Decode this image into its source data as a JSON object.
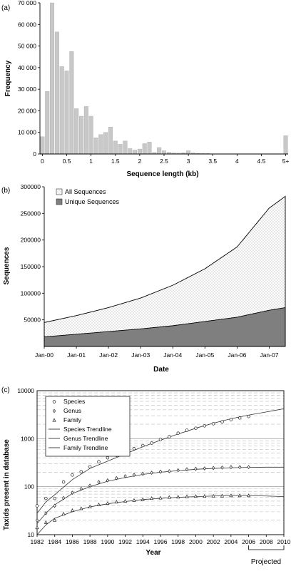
{
  "chart_data": [
    {
      "type": "bar",
      "panel_label": "(a)",
      "xlabel": "Sequence length (kb)",
      "ylabel": "Frequency",
      "ylim": [
        0,
        70000
      ],
      "yticks": [
        0,
        10000,
        20000,
        30000,
        40000,
        50000,
        60000,
        70000
      ],
      "ytick_labels": [
        "0",
        "10 000",
        "20 000",
        "30 000",
        "40 000",
        "50 000",
        "60 000",
        "70 000"
      ],
      "xtick_labels": [
        "0",
        "0.5",
        "1",
        "1.5",
        "2",
        "2.5",
        "3",
        "3.5",
        "4",
        "4.5",
        "5+"
      ],
      "bin_width_kb": 0.1,
      "bin_starts_kb": [
        0.0,
        0.1,
        0.2,
        0.3,
        0.4,
        0.5,
        0.6,
        0.7,
        0.8,
        0.9,
        1.0,
        1.1,
        1.2,
        1.3,
        1.4,
        1.5,
        1.6,
        1.7,
        1.8,
        1.9,
        2.0,
        2.1,
        2.2,
        2.3,
        2.4,
        2.5,
        2.6,
        2.7,
        2.8,
        2.9,
        3.0,
        3.1,
        3.2,
        3.3,
        3.4,
        3.5,
        3.6,
        3.7,
        3.8,
        3.9,
        4.0,
        4.1,
        4.2,
        4.3,
        4.4,
        4.5,
        4.6,
        4.7,
        4.8,
        4.9,
        "5+"
      ],
      "values": [
        8000,
        29000,
        70000,
        56500,
        40500,
        38500,
        47500,
        21000,
        17500,
        22000,
        17500,
        7500,
        9000,
        10000,
        12500,
        6000,
        4500,
        6000,
        2500,
        1800,
        2300,
        4800,
        5500,
        700,
        3000,
        1500,
        800,
        500,
        400,
        600,
        1500,
        500,
        300,
        200,
        200,
        100,
        100,
        100,
        100,
        100,
        100,
        100,
        100,
        100,
        100,
        100,
        100,
        100,
        100,
        100,
        8500
      ],
      "bar_color": "#c8c8c8"
    },
    {
      "type": "area",
      "panel_label": "(b)",
      "xlabel": "Date",
      "ylabel": "Sequences",
      "ylim": [
        0,
        300000
      ],
      "yticks": [
        50000,
        100000,
        150000,
        200000,
        250000,
        300000
      ],
      "ytick_labels": [
        "50000",
        "100000",
        "150000",
        "200000",
        "250000",
        "300000"
      ],
      "xlim": [
        "2000-01",
        "2007-07"
      ],
      "xtick_labels": [
        "Jan-00",
        "Jan-01",
        "Jan-02",
        "Jan-03",
        "Jan-04",
        "Jan-05",
        "Jan-06",
        "Jan-07"
      ],
      "x": [
        "2000-01",
        "2001-01",
        "2002-01",
        "2003-01",
        "2004-01",
        "2005-01",
        "2006-01",
        "2007-01",
        "2007-07"
      ],
      "series": [
        {
          "name": "All Sequences",
          "fill": "dotted",
          "color": "#ffffff",
          "values": [
            45000,
            58000,
            73000,
            91000,
            115000,
            146000,
            187000,
            260000,
            282000
          ]
        },
        {
          "name": "Unique Sequences",
          "fill": "solid",
          "color": "#7f7f7f",
          "values": [
            18000,
            23000,
            28000,
            33000,
            39000,
            47000,
            55000,
            68000,
            73000
          ]
        }
      ],
      "legend_position": "top-left"
    },
    {
      "type": "scatter",
      "panel_label": "(c)",
      "xlabel": "Year",
      "ylabel": "Taxids present in database",
      "yscale": "log",
      "ylim": [
        10,
        10000
      ],
      "yticks": [
        10,
        100,
        1000,
        10000
      ],
      "ytick_labels": [
        "10",
        "100",
        "1000",
        "10000"
      ],
      "xlim": [
        1982,
        2010
      ],
      "xticks": [
        1982,
        1984,
        1986,
        1988,
        1990,
        1992,
        1994,
        1996,
        1998,
        2000,
        2002,
        2004,
        2006,
        2008,
        2010
      ],
      "xtick_labels": [
        "1982",
        "1984",
        "1986",
        "1988",
        "1990",
        "1992",
        "1994",
        "1996",
        "1998",
        "2000",
        "2002",
        "2004",
        "2006",
        "2008",
        "2010"
      ],
      "projected_label": "Projected",
      "projected_range": [
        2006,
        2010
      ],
      "grid": "horizontal dashed",
      "x": [
        1982,
        1983,
        1984,
        1985,
        1986,
        1987,
        1988,
        1989,
        1990,
        1991,
        1992,
        1993,
        1994,
        1995,
        1996,
        1997,
        1998,
        1999,
        2000,
        2001,
        2002,
        2003,
        2004,
        2005,
        2006
      ],
      "series": [
        {
          "name": "Species",
          "marker": "circle",
          "values": [
            40,
            57,
            57,
            125,
            175,
            205,
            260,
            330,
            400,
            450,
            520,
            620,
            720,
            810,
            960,
            1100,
            1300,
            1500,
            1650,
            1850,
            2050,
            2250,
            2500,
            2700,
            2900
          ]
        },
        {
          "name": "Genus",
          "marker": "diamond",
          "values": [
            20,
            28,
            40,
            58,
            75,
            90,
            105,
            125,
            135,
            150,
            165,
            175,
            185,
            195,
            205,
            210,
            220,
            230,
            235,
            240,
            245,
            250,
            255,
            255,
            255
          ]
        },
        {
          "name": "Family",
          "marker": "triangle",
          "values": [
            14,
            18,
            20,
            27,
            32,
            35,
            38,
            42,
            45,
            48,
            50,
            52,
            54,
            57,
            58,
            60,
            61,
            62,
            63,
            63,
            64,
            64,
            65,
            65,
            65
          ]
        },
        {
          "name": "Species Trendline",
          "line": "solid",
          "x": [
            1982,
            1983,
            1984,
            1986,
            1988,
            1990,
            1992,
            1994,
            1996,
            1998,
            2000,
            2002,
            2004,
            2006,
            2008,
            2010
          ],
          "values": [
            28,
            48,
            68,
            140,
            240,
            340,
            480,
            680,
            930,
            1250,
            1650,
            2100,
            2600,
            3100,
            3600,
            4200
          ]
        },
        {
          "name": "Genus Trendline",
          "line": "solid",
          "x": [
            1982,
            1983,
            1984,
            1986,
            1988,
            1990,
            1992,
            1994,
            1996,
            1998,
            2000,
            2002,
            2004,
            2006,
            2008,
            2010
          ],
          "values": [
            17,
            28,
            42,
            72,
            100,
            130,
            155,
            180,
            200,
            215,
            230,
            240,
            248,
            252,
            255,
            255
          ]
        },
        {
          "name": "Family Trendline",
          "line": "solid",
          "x": [
            1982,
            1983,
            1984,
            1986,
            1988,
            1990,
            1992,
            1994,
            1996,
            1998,
            2000,
            2002,
            2004,
            2006,
            2008,
            2010
          ],
          "values": [
            10,
            16,
            22,
            30,
            38,
            44,
            49,
            54,
            57,
            60,
            62,
            64,
            65,
            65,
            64,
            62
          ]
        }
      ],
      "legend_position": "top-left"
    }
  ]
}
